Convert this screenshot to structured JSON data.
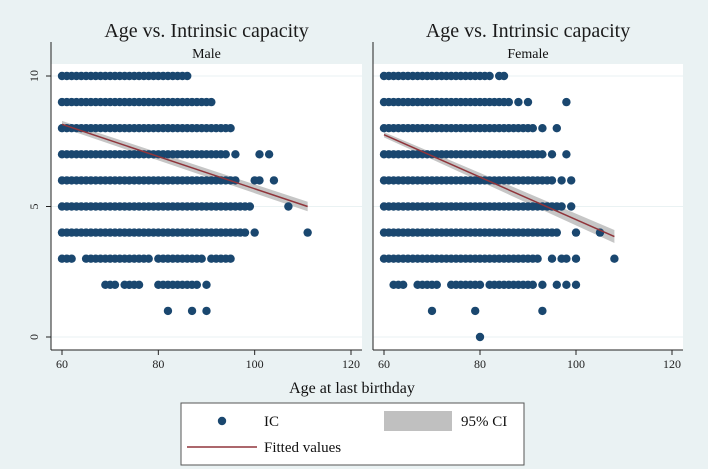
{
  "colors": {
    "background": "#eaf2f3",
    "panel": "#ffffff",
    "strip": "#eaf2f3",
    "marker": "#1a476f",
    "fit_line": "#90353b",
    "ci_band": "#c0c0c0",
    "grid": "#eaf2f3"
  },
  "chart_data": {
    "type": "scatter",
    "xlabel": "Age at last birthday",
    "xlim": [
      57,
      122
    ],
    "ylim": [
      -0.3,
      10.5
    ],
    "xticks": [
      60,
      80,
      100,
      120
    ],
    "yticks": [
      0,
      5,
      10
    ],
    "panels": [
      {
        "title": "Age vs. Intrinsic capacity",
        "strip": "Male",
        "fit": {
          "x": [
            60,
            111
          ],
          "y": [
            8.15,
            5.0
          ]
        },
        "ci": {
          "x": [
            60,
            111
          ],
          "upper": [
            8.28,
            5.18
          ],
          "lower": [
            8.02,
            4.82
          ]
        },
        "points": [
          {
            "y": 10,
            "ranges": [
              [
                60,
                86
              ]
            ]
          },
          {
            "y": 9,
            "ranges": [
              [
                60,
                91
              ]
            ]
          },
          {
            "y": 8,
            "ranges": [
              [
                60,
                95
              ]
            ]
          },
          {
            "y": 7,
            "ranges": [
              [
                60,
                94
              ]
            ],
            "extra": [
              96,
              101,
              103
            ]
          },
          {
            "y": 6,
            "ranges": [
              [
                60,
                96
              ]
            ],
            "extra": [
              100,
              101,
              104
            ]
          },
          {
            "y": 5,
            "ranges": [
              [
                60,
                98
              ]
            ],
            "extra": [
              99,
              107
            ]
          },
          {
            "y": 4,
            "ranges": [
              [
                60,
                97
              ]
            ],
            "extra": [
              98,
              100,
              111
            ]
          },
          {
            "y": 3,
            "ranges": [
              [
                60,
                62
              ],
              [
                65,
                78
              ],
              [
                80,
                89
              ],
              [
                91,
                95
              ]
            ]
          },
          {
            "y": 2,
            "ranges": [
              [
                69,
                71
              ],
              [
                73,
                76
              ],
              [
                80,
                85
              ],
              [
                87,
                88
              ]
            ],
            "extra": [
              86,
              90
            ]
          },
          {
            "y": 1,
            "ranges": [],
            "extra": [
              82,
              87,
              90
            ]
          }
        ]
      },
      {
        "title": "Age vs. Intrinsic capacity",
        "strip": "Female",
        "fit": {
          "x": [
            60,
            108
          ],
          "y": [
            7.75,
            3.85
          ]
        },
        "ci": {
          "x": [
            60,
            108
          ],
          "upper": [
            7.85,
            4.1
          ],
          "lower": [
            7.65,
            3.6
          ]
        },
        "points": [
          {
            "y": 10,
            "ranges": [
              [
                60,
                82
              ]
            ],
            "extra": [
              84,
              85
            ]
          },
          {
            "y": 9,
            "ranges": [
              [
                60,
                86
              ]
            ],
            "extra": [
              88,
              90,
              98
            ]
          },
          {
            "y": 8,
            "ranges": [
              [
                60,
                91
              ]
            ],
            "extra": [
              93,
              96
            ]
          },
          {
            "y": 7,
            "ranges": [
              [
                60,
                93
              ]
            ],
            "extra": [
              95,
              98
            ]
          },
          {
            "y": 6,
            "ranges": [
              [
                60,
                95
              ]
            ],
            "extra": [
              97,
              99
            ]
          },
          {
            "y": 5,
            "ranges": [
              [
                60,
                97
              ]
            ],
            "extra": [
              99
            ]
          },
          {
            "y": 4,
            "ranges": [
              [
                60,
                96
              ]
            ],
            "extra": [
              100,
              105
            ]
          },
          {
            "y": 3,
            "ranges": [
              [
                60,
                92
              ]
            ],
            "extra": [
              95,
              97,
              98,
              100,
              108
            ]
          },
          {
            "y": 2,
            "ranges": [
              [
                62,
                64
              ],
              [
                67,
                71
              ],
              [
                74,
                80
              ],
              [
                82,
                91
              ]
            ],
            "extra": [
              93,
              96,
              98,
              100
            ]
          },
          {
            "y": 1,
            "ranges": [],
            "extra": [
              70,
              79,
              93
            ]
          },
          {
            "y": 0,
            "ranges": [],
            "extra": [
              80
            ]
          }
        ]
      }
    ],
    "legend": {
      "items": [
        {
          "key": "ic",
          "label": "IC",
          "kind": "marker"
        },
        {
          "key": "ci",
          "label": "95% CI",
          "kind": "band"
        },
        {
          "key": "fit",
          "label": "Fitted values",
          "kind": "line"
        }
      ]
    }
  }
}
